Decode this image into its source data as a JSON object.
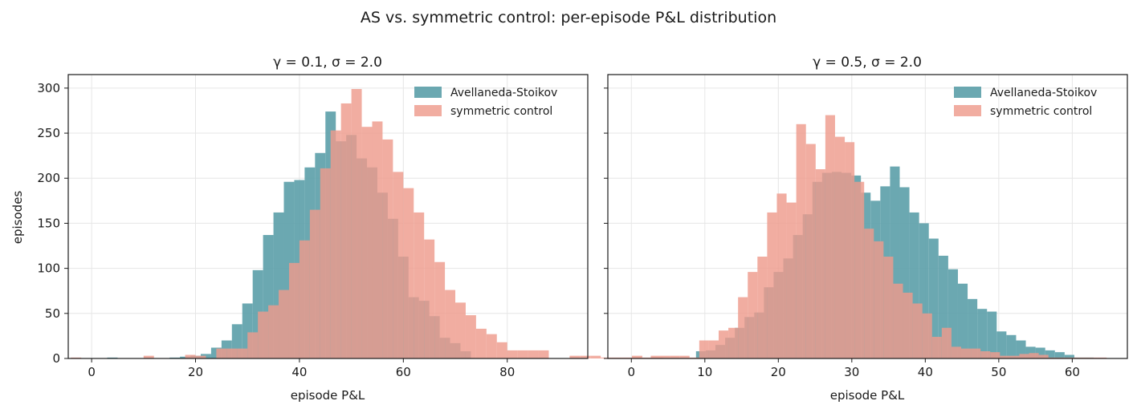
{
  "figure": {
    "suptitle": "AS vs. symmetric control: per-episode P&L distribution",
    "shared_ylabel": "episodes",
    "colors": {
      "avellaneda_stoikov": "#5b9ea8",
      "symmetric_control": "#ee9b8c",
      "overlap": "#a87a73"
    }
  },
  "chart_data": [
    {
      "type": "histogram",
      "title": "γ = 0.1,  σ = 2.0",
      "xlabel": "episode P&L",
      "ylabel": "episodes",
      "xlim": [
        -4.5,
        95.5
      ],
      "ylim": [
        0,
        315
      ],
      "xticks": [
        0,
        20,
        40,
        60,
        80
      ],
      "yticks": [
        0,
        50,
        100,
        150,
        200,
        250,
        300
      ],
      "grid": true,
      "legend_position": "top-right",
      "series": [
        {
          "name": "Avellaneda-Stoikov",
          "bin_start": 3.0,
          "bin_width": 2.0,
          "counts": [
            1,
            0,
            0,
            0,
            0,
            0,
            1,
            2,
            3,
            5,
            12,
            20,
            38,
            61,
            98,
            137,
            162,
            196,
            198,
            212,
            228,
            274,
            241,
            248,
            222,
            212,
            184,
            155,
            113,
            68,
            64,
            47,
            23,
            17,
            8
          ]
        },
        {
          "name": "symmetric control",
          "bin_start": -4.0,
          "bin_width": 2.0,
          "counts": [
            1,
            0,
            0,
            0,
            0,
            0,
            0,
            3,
            0,
            0,
            0,
            4,
            3,
            0,
            11,
            11,
            11,
            29,
            52,
            59,
            76,
            106,
            131,
            165,
            211,
            253,
            283,
            299,
            257,
            263,
            243,
            207,
            189,
            162,
            132,
            107,
            76,
            62,
            48,
            33,
            27,
            18,
            9,
            9,
            9,
            9,
            0,
            0,
            3,
            3,
            3,
            1,
            1,
            1,
            3,
            1,
            1
          ]
        }
      ]
    },
    {
      "type": "histogram",
      "title": "γ = 0.5,  σ = 2.0",
      "xlabel": "episode P&L",
      "ylabel": "",
      "xlim": [
        -3.2,
        67.5
      ],
      "ylim": [
        0,
        315
      ],
      "xticks": [
        0,
        10,
        20,
        30,
        40,
        50,
        60
      ],
      "yticks": [
        0,
        50,
        100,
        150,
        200,
        250,
        300
      ],
      "grid": true,
      "legend_position": "top-right",
      "series": [
        {
          "name": "Avellaneda-Stoikov",
          "bin_start": 8.8,
          "bin_width": 1.32,
          "counts": [
            8,
            9,
            15,
            23,
            34,
            46,
            51,
            79,
            96,
            111,
            137,
            160,
            196,
            206,
            207,
            206,
            203,
            184,
            175,
            191,
            213,
            190,
            162,
            150,
            133,
            114,
            99,
            83,
            66,
            55,
            52,
            30,
            26,
            20,
            13,
            12,
            9,
            7,
            4,
            1,
            1,
            0,
            0,
            0,
            0,
            0,
            1,
            1
          ]
        },
        {
          "name": "symmetric control",
          "bin_start": 0.0,
          "bin_width": 1.32,
          "counts": [
            1,
            0,
            3,
            3,
            3,
            3,
            1,
            20,
            20,
            31,
            34,
            68,
            96,
            113,
            162,
            183,
            173,
            260,
            238,
            210,
            270,
            246,
            240,
            196,
            144,
            130,
            113,
            83,
            73,
            61,
            50,
            24,
            34,
            13,
            11,
            11,
            8,
            7,
            3,
            3,
            5,
            6,
            4,
            1,
            1,
            1,
            1,
            1,
            1,
            0,
            0,
            0,
            0,
            0,
            1
          ]
        }
      ]
    }
  ]
}
